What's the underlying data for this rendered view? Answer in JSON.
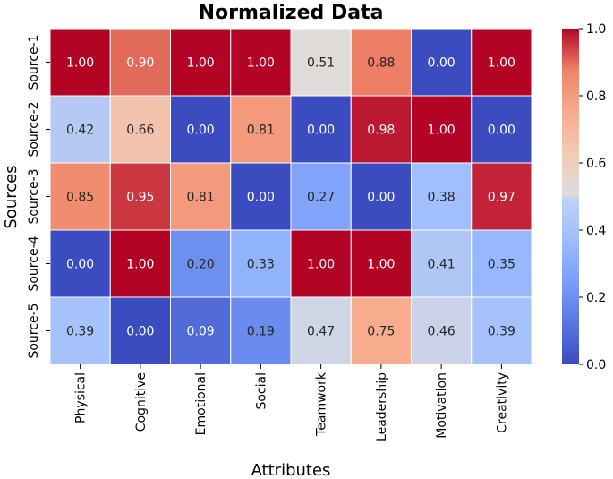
{
  "chart_data": {
    "type": "heatmap",
    "title": "Normalized Data",
    "xlabel": "Attributes",
    "ylabel": "Sources",
    "columns": [
      "Physical",
      "Cognitive",
      "Emotional",
      "Social",
      "Teamwork",
      "Leadership",
      "Motivation",
      "Creativity"
    ],
    "rows": [
      "Source-1",
      "Source-2",
      "Source-3",
      "Source-4",
      "Source-5"
    ],
    "values": [
      [
        1.0,
        0.9,
        1.0,
        1.0,
        0.51,
        0.88,
        0.0,
        1.0
      ],
      [
        0.42,
        0.66,
        0.0,
        0.81,
        0.0,
        0.98,
        1.0,
        0.0
      ],
      [
        0.85,
        0.95,
        0.81,
        0.0,
        0.27,
        0.0,
        0.38,
        0.97
      ],
      [
        0.0,
        1.0,
        0.2,
        0.33,
        1.0,
        1.0,
        0.41,
        0.35
      ],
      [
        0.39,
        0.0,
        0.09,
        0.19,
        0.47,
        0.75,
        0.46,
        0.39
      ]
    ],
    "colormap": "coolwarm",
    "vmin": 0.0,
    "vmax": 1.0,
    "colorbar_ticks": [
      "0.0",
      "0.2",
      "0.4",
      "0.6",
      "0.8",
      "1.0"
    ]
  }
}
